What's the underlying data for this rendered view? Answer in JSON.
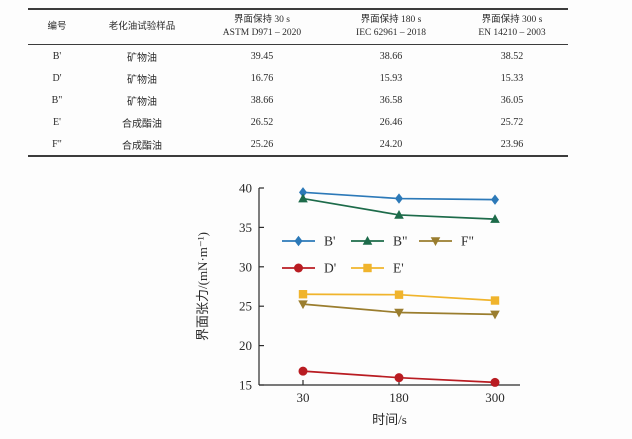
{
  "table": {
    "headers": {
      "id": "编号",
      "sample": "老化油试验样品",
      "c30_line1": "界面保持 30 s",
      "c30_line2": "ASTM D971 – 2020",
      "c180_line1": "界面保持 180 s",
      "c180_line2": "IEC 62961 – 2018",
      "c300_line1": "界面保持 300 s",
      "c300_line2": "EN 14210 – 2003"
    },
    "rows": [
      {
        "id": "B'",
        "sample": "矿物油",
        "v30": "39.45",
        "v180": "38.66",
        "v300": "38.52"
      },
      {
        "id": "D'",
        "sample": "矿物油",
        "v30": "16.76",
        "v180": "15.93",
        "v300": "15.33"
      },
      {
        "id": "B\"",
        "sample": "矿物油",
        "v30": "38.66",
        "v180": "36.58",
        "v300": "36.05"
      },
      {
        "id": "E'",
        "sample": "合成酯油",
        "v30": "26.52",
        "v180": "26.46",
        "v300": "25.72"
      },
      {
        "id": "F\"",
        "sample": "合成酯油",
        "v30": "25.26",
        "v180": "24.20",
        "v300": "23.96"
      }
    ]
  },
  "chart_data": {
    "type": "line",
    "categories": [
      "30",
      "180",
      "300"
    ],
    "xlabel": "时间/s",
    "ylabel": "界面张力/(mN·m⁻¹)",
    "ylim": [
      15,
      40
    ],
    "yticks": [
      15,
      20,
      25,
      30,
      35,
      40
    ],
    "grid": false,
    "legend_position": "inside upper-left, two rows",
    "series": [
      {
        "name": "B'",
        "marker": "diamond",
        "color": "#2c79b8",
        "values": [
          39.45,
          38.66,
          38.52
        ]
      },
      {
        "name": "B\"",
        "marker": "triangle-up",
        "color": "#1d6b4a",
        "values": [
          38.66,
          36.58,
          36.05
        ]
      },
      {
        "name": "F\"",
        "marker": "triangle-down",
        "color": "#9a7d2e",
        "values": [
          25.26,
          24.2,
          23.96
        ]
      },
      {
        "name": "D'",
        "marker": "circle",
        "color": "#b91c22",
        "values": [
          16.76,
          15.93,
          15.33
        ]
      },
      {
        "name": "E'",
        "marker": "square",
        "color": "#f0b42c",
        "values": [
          26.52,
          26.46,
          25.72
        ]
      }
    ],
    "legend_rows": [
      [
        "B'",
        "B\"",
        "F\""
      ],
      [
        "D'",
        "E'"
      ]
    ],
    "axis_color": "#2b2b2b",
    "text_color": "#2b2b2b"
  }
}
